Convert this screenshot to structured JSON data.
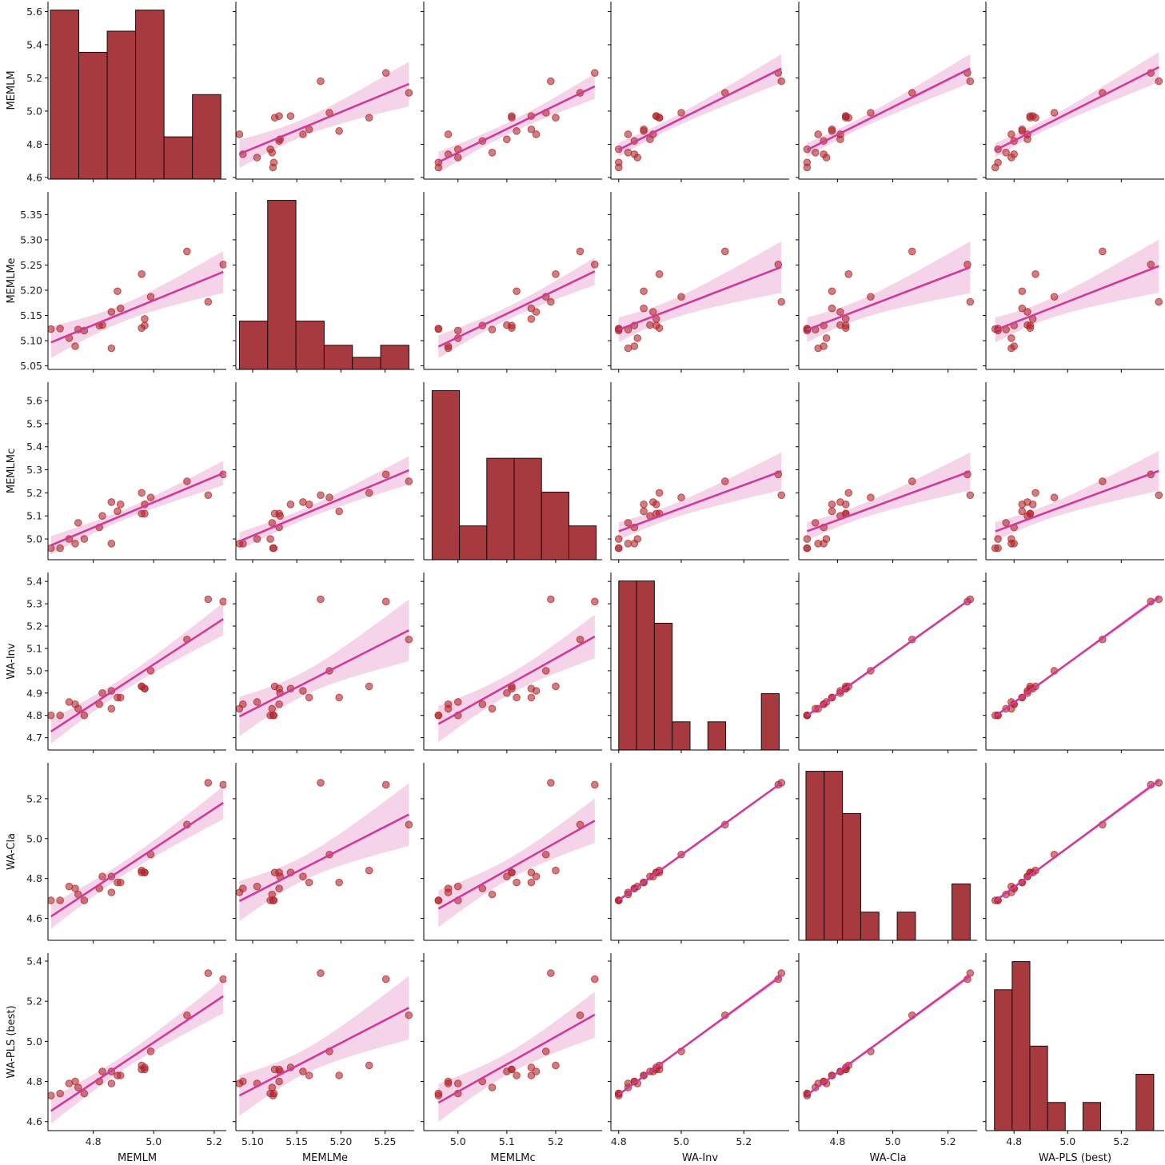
{
  "chart_data": {
    "type": "pairplot",
    "variables": [
      "MEMLM",
      "MEMLMe",
      "MEMLMc",
      "WA-Inv",
      "WA-Cla",
      "WA-PLS (best)"
    ],
    "diag_kind": "hist",
    "off_diag_kind": "reg",
    "colors": {
      "bar_fill": "#a63a3e",
      "bar_edge": "#1a0a0a",
      "point": "#b0262c",
      "reg_line": "#d03a9b",
      "ci_band": "#f2c6e2"
    },
    "axes": {
      "MEMLM": {
        "lim": [
          4.65,
          5.24
        ],
        "ticks": [
          4.8,
          5.0,
          5.2
        ],
        "row_lim": [
          4.59,
          5.66
        ],
        "row_ticks": [
          4.6,
          4.8,
          5.0,
          5.2,
          5.4,
          5.6
        ]
      },
      "MEMLMe": {
        "lim": [
          5.081,
          5.283
        ],
        "ticks": [
          5.1,
          5.15,
          5.2,
          5.25
        ],
        "row_lim": [
          5.043,
          5.395
        ],
        "row_ticks": [
          5.05,
          5.1,
          5.15,
          5.2,
          5.25,
          5.3,
          5.35
        ]
      },
      "MEMLMc": {
        "lim": [
          4.93,
          5.295
        ],
        "ticks": [
          5.0,
          5.1,
          5.2
        ],
        "row_lim": [
          4.91,
          5.68
        ],
        "row_ticks": [
          5.0,
          5.1,
          5.2,
          5.3,
          5.4,
          5.5,
          5.6
        ]
      },
      "WA-Inv": {
        "lim": [
          4.775,
          5.345
        ],
        "ticks": [
          4.8,
          5.0,
          5.2
        ],
        "row_lim": [
          4.645,
          5.44
        ],
        "row_ticks": [
          4.7,
          4.8,
          4.9,
          5.0,
          5.1,
          5.2,
          5.3,
          5.4
        ]
      },
      "WA-Cla": {
        "lim": [
          4.66,
          5.305
        ],
        "ticks": [
          4.8,
          5.0,
          5.2
        ],
        "row_lim": [
          4.49,
          5.38
        ],
        "row_ticks": [
          4.6,
          4.8,
          5.0,
          5.2
        ]
      },
      "WA-PLS (best)": {
        "lim": [
          4.695,
          5.36
        ],
        "ticks": [
          4.8,
          5.0,
          5.2
        ],
        "row_lim": [
          4.555,
          5.44
        ],
        "row_ticks": [
          4.6,
          4.8,
          5.0,
          5.2,
          5.4
        ]
      }
    },
    "histograms": {
      "MEMLM": {
        "edges": [
          4.658,
          4.752,
          4.846,
          4.94,
          5.034,
          5.128,
          5.222
        ],
        "counts": [
          4,
          3,
          3.5,
          4,
          1,
          2
        ]
      },
      "MEMLMe": {
        "edges": [
          5.085,
          5.117,
          5.149,
          5.181,
          5.213,
          5.245,
          5.277
        ],
        "counts": [
          2,
          7,
          2,
          1,
          0.5,
          1
        ]
      },
      "MEMLMc": {
        "edges": [
          4.947,
          5.003,
          5.059,
          5.115,
          5.171,
          5.227,
          5.283
        ],
        "counts": [
          5,
          1,
          3,
          3,
          2,
          1
        ]
      },
      "WA-Inv": {
        "edges": [
          4.8,
          4.857,
          4.914,
          4.971,
          5.028,
          5.085,
          5.142,
          5.199,
          5.256,
          5.313
        ],
        "counts": [
          6,
          6,
          4.5,
          1,
          0,
          1,
          0,
          0,
          2
        ]
      },
      "WA-Cla": {
        "edges": [
          4.686,
          4.752,
          4.818,
          4.884,
          4.95,
          5.016,
          5.082,
          5.148,
          5.214,
          5.28
        ],
        "counts": [
          6,
          6,
          4.5,
          1,
          0,
          1,
          0,
          0,
          2
        ]
      },
      "WA-PLS (best)": {
        "edges": [
          4.727,
          4.793,
          4.859,
          4.925,
          4.991,
          5.057,
          5.123,
          5.189,
          5.255,
          5.321
        ],
        "counts": [
          5,
          6,
          3,
          1,
          0,
          1,
          0,
          0,
          2
        ]
      }
    },
    "samples": [
      {
        "MEMLM": 4.66,
        "MEMLMe": 5.123,
        "MEMLMc": 4.96,
        "WA-Inv": 4.8,
        "WA-Cla": 4.69,
        "WA-PLS (best)": 4.73
      },
      {
        "MEMLM": 4.69,
        "MEMLMe": 5.124,
        "MEMLMc": 4.96,
        "WA-Inv": 4.8,
        "WA-Cla": 4.69,
        "WA-PLS (best)": 4.74
      },
      {
        "MEMLM": 4.72,
        "MEMLMe": 5.105,
        "MEMLMc": 5.0,
        "WA-Inv": 4.86,
        "WA-Cla": 4.76,
        "WA-PLS (best)": 4.79
      },
      {
        "MEMLM": 4.74,
        "MEMLMe": 5.089,
        "MEMLMc": 4.98,
        "WA-Inv": 4.85,
        "WA-Cla": 4.75,
        "WA-PLS (best)": 4.8
      },
      {
        "MEMLM": 4.75,
        "MEMLMe": 5.122,
        "MEMLMc": 5.07,
        "WA-Inv": 4.83,
        "WA-Cla": 4.72,
        "WA-PLS (best)": 4.77
      },
      {
        "MEMLM": 4.77,
        "MEMLMe": 5.12,
        "MEMLMc": 5.0,
        "WA-Inv": 4.8,
        "WA-Cla": 4.69,
        "WA-PLS (best)": 4.74
      },
      {
        "MEMLM": 4.82,
        "MEMLMe": 5.13,
        "MEMLMc": 5.05,
        "WA-Inv": 4.85,
        "WA-Cla": 4.75,
        "WA-PLS (best)": 4.8
      },
      {
        "MEMLM": 4.83,
        "MEMLMe": 5.131,
        "MEMLMc": 5.1,
        "WA-Inv": 4.9,
        "WA-Cla": 4.81,
        "WA-PLS (best)": 4.85
      },
      {
        "MEMLM": 4.86,
        "MEMLMe": 5.085,
        "MEMLMc": 4.98,
        "WA-Inv": 4.83,
        "WA-Cla": 4.73,
        "WA-PLS (best)": 4.79
      },
      {
        "MEMLM": 4.86,
        "MEMLMe": 5.157,
        "MEMLMc": 5.16,
        "WA-Inv": 4.91,
        "WA-Cla": 4.81,
        "WA-PLS (best)": 4.85
      },
      {
        "MEMLM": 4.88,
        "MEMLMe": 5.198,
        "MEMLMc": 5.12,
        "WA-Inv": 4.88,
        "WA-Cla": 4.78,
        "WA-PLS (best)": 4.83
      },
      {
        "MEMLM": 4.89,
        "MEMLMe": 5.164,
        "MEMLMc": 5.15,
        "WA-Inv": 4.88,
        "WA-Cla": 4.78,
        "WA-PLS (best)": 4.83
      },
      {
        "MEMLM": 4.96,
        "MEMLMe": 5.232,
        "MEMLMc": 5.2,
        "WA-Inv": 4.93,
        "WA-Cla": 4.84,
        "WA-PLS (best)": 4.88
      },
      {
        "MEMLM": 4.96,
        "MEMLMe": 5.125,
        "MEMLMc": 5.11,
        "WA-Inv": 4.93,
        "WA-Cla": 4.83,
        "WA-PLS (best)": 4.86
      },
      {
        "MEMLM": 4.97,
        "MEMLMe": 5.143,
        "MEMLMc": 5.15,
        "WA-Inv": 4.92,
        "WA-Cla": 4.83,
        "WA-PLS (best)": 4.87
      },
      {
        "MEMLM": 4.97,
        "MEMLMe": 5.13,
        "MEMLMc": 5.11,
        "WA-Inv": 4.92,
        "WA-Cla": 4.83,
        "WA-PLS (best)": 4.86
      },
      {
        "MEMLM": 4.99,
        "MEMLMe": 5.187,
        "MEMLMc": 5.18,
        "WA-Inv": 5.0,
        "WA-Cla": 4.92,
        "WA-PLS (best)": 4.95
      },
      {
        "MEMLM": 5.11,
        "MEMLMe": 5.277,
        "MEMLMc": 5.25,
        "WA-Inv": 5.14,
        "WA-Cla": 5.07,
        "WA-PLS (best)": 5.13
      },
      {
        "MEMLM": 5.18,
        "MEMLMe": 5.177,
        "MEMLMc": 5.19,
        "WA-Inv": 5.32,
        "WA-Cla": 5.28,
        "WA-PLS (best)": 5.34
      },
      {
        "MEMLM": 5.23,
        "MEMLMe": 5.251,
        "MEMLMc": 5.28,
        "WA-Inv": 5.31,
        "WA-Cla": 5.27,
        "WA-PLS (best)": 5.31
      }
    ]
  }
}
